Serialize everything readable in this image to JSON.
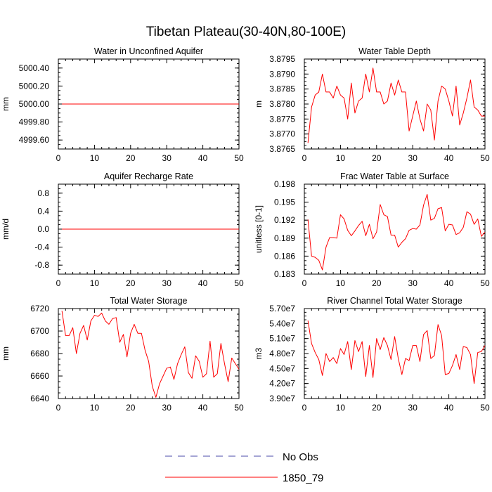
{
  "title": "Tibetan Plateau(30-40N,80-100E)",
  "legend": [
    {
      "label": "No Obs",
      "color": "#4a4aa8",
      "style": "dashed"
    },
    {
      "label": "1850_79",
      "color": "#ff0000",
      "style": "solid"
    }
  ],
  "chart_data": [
    {
      "type": "line",
      "title": "Water in Unconfined Aquifer",
      "ylabel": "mm",
      "xlim": [
        0,
        50
      ],
      "ylim": [
        4999.5,
        5000.5
      ],
      "xticks": [
        0,
        10,
        20,
        30,
        40,
        50
      ],
      "xtick_labels": [
        "0",
        "10",
        "20",
        "30",
        "40",
        "50"
      ],
      "yticks": [
        4999.6,
        4999.8,
        5000.0,
        5000.2,
        5000.4
      ],
      "ytick_labels": [
        "4999.60",
        "4999.80",
        "5000.00",
        "5000.20",
        "5000.40"
      ],
      "x_start": 1,
      "series": [
        {
          "name": "1850_79",
          "color": "#ff0000",
          "values": [
            5000,
            5000,
            5000,
            5000,
            5000,
            5000,
            5000,
            5000,
            5000,
            5000,
            5000,
            5000,
            5000,
            5000,
            5000,
            5000,
            5000,
            5000,
            5000,
            5000,
            5000,
            5000,
            5000,
            5000,
            5000,
            5000,
            5000,
            5000,
            5000,
            5000,
            5000,
            5000,
            5000,
            5000,
            5000,
            5000,
            5000,
            5000,
            5000,
            5000,
            5000,
            5000,
            5000,
            5000,
            5000,
            5000,
            5000,
            5000,
            5000,
            5000
          ]
        }
      ]
    },
    {
      "type": "line",
      "title": "Water Table Depth",
      "ylabel": "m",
      "xlim": [
        0,
        50
      ],
      "ylim": [
        3.8765,
        3.8795
      ],
      "xticks": [
        0,
        10,
        20,
        30,
        40,
        50
      ],
      "xtick_labels": [
        "0",
        "10",
        "20",
        "30",
        "40",
        "50"
      ],
      "yticks": [
        3.8765,
        3.877,
        3.8775,
        3.878,
        3.8785,
        3.879,
        3.8795
      ],
      "ytick_labels": [
        "3.8765",
        "3.8770",
        "3.8775",
        "3.8780",
        "3.8785",
        "3.8790",
        "3.8795"
      ],
      "x_start": 1,
      "series": [
        {
          "name": "1850_79",
          "color": "#ff0000",
          "values": [
            3.8767,
            3.8779,
            3.8783,
            3.8784,
            3.879,
            3.8784,
            3.8784,
            3.8782,
            3.8786,
            3.8783,
            3.8782,
            3.8775,
            3.8787,
            3.8777,
            3.8781,
            3.8782,
            3.879,
            3.8784,
            3.8792,
            3.8784,
            3.8784,
            3.878,
            3.8781,
            3.8787,
            3.8783,
            3.8788,
            3.8784,
            3.8784,
            3.8771,
            3.8776,
            3.8781,
            3.8775,
            3.8771,
            3.878,
            3.8778,
            3.8768,
            3.8781,
            3.8786,
            3.8785,
            3.8781,
            3.8776,
            3.8786,
            3.8773,
            3.8777,
            3.8782,
            3.8788,
            3.8779,
            3.8778,
            3.8776,
            3.8776
          ]
        }
      ]
    },
    {
      "type": "line",
      "title": "Aquifer Recharge Rate",
      "ylabel": "mm/d",
      "xlim": [
        0,
        50
      ],
      "ylim": [
        -1,
        1
      ],
      "xticks": [
        0,
        10,
        20,
        30,
        40,
        50
      ],
      "xtick_labels": [
        "0",
        "10",
        "20",
        "30",
        "40",
        "50"
      ],
      "yticks": [
        -0.8,
        -0.4,
        0,
        0.4,
        0.8
      ],
      "ytick_labels": [
        "-0.8",
        "-0.4",
        "0.0",
        "0.4",
        "0.8"
      ],
      "x_start": 1,
      "series": [
        {
          "name": "1850_79",
          "color": "#ff0000",
          "values": [
            0,
            0,
            0,
            0,
            0,
            0,
            0,
            0,
            0,
            0,
            0,
            0,
            0,
            0,
            0,
            0,
            0,
            0,
            0,
            0,
            0,
            0,
            0,
            0,
            0,
            0,
            0,
            0,
            0,
            0,
            0,
            0,
            0,
            0,
            0,
            0,
            0,
            0,
            0,
            0,
            0,
            0,
            0,
            0,
            0,
            0,
            0,
            0,
            0,
            0
          ]
        }
      ]
    },
    {
      "type": "line",
      "title": "Frac Water Table at Surface",
      "ylabel": "unitless [0-1]",
      "xlim": [
        0,
        50
      ],
      "ylim": [
        0.183,
        0.198
      ],
      "xticks": [
        0,
        10,
        20,
        30,
        40,
        50
      ],
      "xtick_labels": [
        "0",
        "10",
        "20",
        "30",
        "40",
        "50"
      ],
      "yticks": [
        0.183,
        0.186,
        0.189,
        0.192,
        0.195,
        0.198
      ],
      "ytick_labels": [
        "0.183",
        "0.186",
        "0.189",
        "0.192",
        "0.195",
        "0.198"
      ],
      "x_start": 1,
      "series": [
        {
          "name": "1850_79",
          "color": "#ff0000",
          "values": [
            0.1921,
            0.186,
            0.1858,
            0.1853,
            0.1837,
            0.1875,
            0.1891,
            0.1891,
            0.189,
            0.1929,
            0.1922,
            0.1903,
            0.1894,
            0.1902,
            0.1911,
            0.1918,
            0.1894,
            0.1913,
            0.1889,
            0.19,
            0.1946,
            0.1929,
            0.1926,
            0.1895,
            0.1895,
            0.1875,
            0.1883,
            0.1889,
            0.1903,
            0.1906,
            0.1905,
            0.1912,
            0.1945,
            0.1963,
            0.192,
            0.1923,
            0.1939,
            0.1941,
            0.1902,
            0.1913,
            0.1912,
            0.1896,
            0.1899,
            0.1908,
            0.1934,
            0.193,
            0.1913,
            0.1922,
            0.1893,
            0.19
          ]
        }
      ]
    },
    {
      "type": "line",
      "title": "Total Water Storage",
      "ylabel": "mm",
      "xlim": [
        0,
        50
      ],
      "ylim": [
        6640,
        6720
      ],
      "xticks": [
        0,
        10,
        20,
        30,
        40,
        50
      ],
      "xtick_labels": [
        "0",
        "10",
        "20",
        "30",
        "40",
        "50"
      ],
      "yticks": [
        6640,
        6660,
        6680,
        6700,
        6720
      ],
      "ytick_labels": [
        "6640",
        "6660",
        "6680",
        "6700",
        "6720"
      ],
      "x_start": 1,
      "series": [
        {
          "name": "1850_79",
          "color": "#ff0000",
          "values": [
            6718,
            6696,
            6696,
            6703,
            6680,
            6698,
            6705,
            6692,
            6709,
            6714,
            6713,
            6716,
            6709,
            6706,
            6711,
            6712,
            6690,
            6697,
            6677,
            6698,
            6706,
            6698,
            6698,
            6683,
            6673,
            6651,
            6641,
            6653,
            6660,
            6667,
            6668,
            6657,
            6671,
            6679,
            6686,
            6663,
            6658,
            6678,
            6673,
            6659,
            6662,
            6691,
            6659,
            6662,
            6689,
            6671,
            6655,
            6676,
            6671,
            6666
          ]
        }
      ]
    },
    {
      "type": "line",
      "title": "River Channel Total Water Storage",
      "ylabel": "m3",
      "xlim": [
        0,
        50
      ],
      "ylim": [
        39000000,
        57000000
      ],
      "xticks": [
        0,
        10,
        20,
        30,
        40,
        50
      ],
      "xtick_labels": [
        "0",
        "10",
        "20",
        "30",
        "40",
        "50"
      ],
      "yticks": [
        39000000,
        42000000,
        45000000,
        48000000,
        51000000,
        54000000,
        57000000
      ],
      "ytick_labels": [
        "3.90e7",
        "4.20e7",
        "4.50e7",
        "4.80e7",
        "5.10e7",
        "5.40e7",
        "5.70e7"
      ],
      "x_start": 1,
      "series": [
        {
          "name": "1850_79",
          "color": "#ff0000",
          "values": [
            54600000,
            50000000,
            48200000,
            46800000,
            43600000,
            48000000,
            46400000,
            47200000,
            46000000,
            49000000,
            47800000,
            50400000,
            44800000,
            50600000,
            48400000,
            50400000,
            43400000,
            49600000,
            43200000,
            51000000,
            48800000,
            51200000,
            49600000,
            46800000,
            51400000,
            47000000,
            43800000,
            47000000,
            46600000,
            49600000,
            49600000,
            46400000,
            51800000,
            52600000,
            47000000,
            47600000,
            53800000,
            51600000,
            43800000,
            44000000,
            45600000,
            47800000,
            44800000,
            49400000,
            49200000,
            47800000,
            42000000,
            48200000,
            48400000,
            49600000
          ]
        }
      ]
    }
  ]
}
